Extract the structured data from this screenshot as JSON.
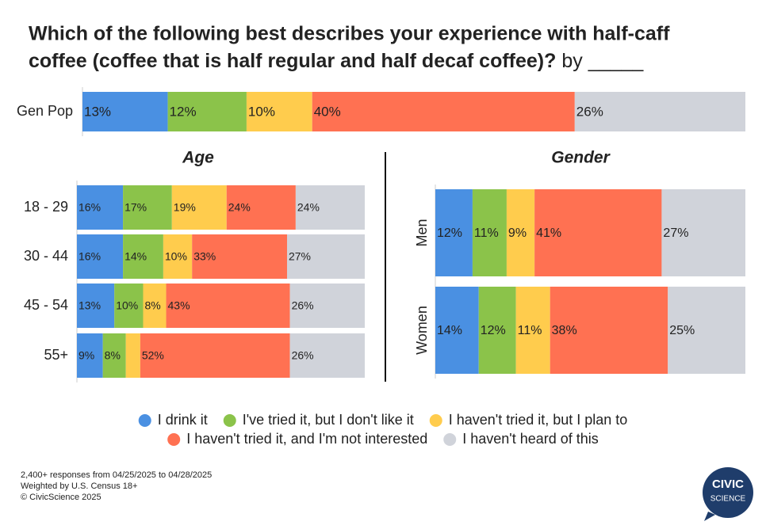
{
  "chart_data": [
    {
      "type": "bar",
      "stacked": true,
      "orientation": "horizontal",
      "title": "Which of the following best describes your experience with half-caff coffee (coffee that is half regular and half decaf coffee)?",
      "title_suffix": "by _____",
      "categories": [
        "Gen Pop"
      ],
      "series": [
        {
          "name": "I drink it",
          "color": "#4a90e2",
          "values": [
            13
          ],
          "value_labels": [
            "13%"
          ]
        },
        {
          "name": "I've tried it, but I don't like it",
          "color": "#8bc34a",
          "values": [
            12
          ],
          "value_labels": [
            "12%"
          ]
        },
        {
          "name": "I haven't tried it, but I plan to",
          "color": "#ffcc4d",
          "values": [
            10
          ],
          "value_labels": [
            "10%"
          ]
        },
        {
          "name": "I haven't tried it, and I'm not interested",
          "color": "#ff7152",
          "values": [
            40
          ],
          "value_labels": [
            "40%"
          ]
        },
        {
          "name": "I haven't heard of this",
          "color": "#d0d3da",
          "values": [
            26
          ],
          "value_labels": [
            "26%"
          ]
        }
      ]
    },
    {
      "type": "bar",
      "stacked": true,
      "orientation": "horizontal",
      "title": "Age",
      "categories": [
        "18 - 29",
        "30 - 44",
        "45 - 54",
        "55+"
      ],
      "series": [
        {
          "color": "#4a90e2",
          "values": [
            16,
            16,
            13,
            9
          ],
          "value_labels": [
            "16%",
            "16%",
            "13%",
            "9%"
          ]
        },
        {
          "color": "#8bc34a",
          "values": [
            17,
            14,
            10,
            8
          ],
          "value_labels": [
            "17%",
            "14%",
            "10%",
            "8%"
          ]
        },
        {
          "color": "#ffcc4d",
          "values": [
            19,
            10,
            8,
            5
          ],
          "value_labels": [
            "19%",
            "10%",
            "8%",
            null
          ]
        },
        {
          "color": "#ff7152",
          "values": [
            24,
            33,
            43,
            52
          ],
          "value_labels": [
            "24%",
            "33%",
            "43%",
            "52%"
          ]
        },
        {
          "color": "#d0d3da",
          "values": [
            24,
            27,
            26,
            26
          ],
          "value_labels": [
            "24%",
            "27%",
            "26%",
            "26%"
          ]
        }
      ]
    },
    {
      "type": "bar",
      "stacked": true,
      "orientation": "horizontal",
      "title": "Gender",
      "categories": [
        "Men",
        "Women"
      ],
      "series": [
        {
          "color": "#4a90e2",
          "values": [
            12,
            14
          ],
          "value_labels": [
            "12%",
            "14%"
          ]
        },
        {
          "color": "#8bc34a",
          "values": [
            11,
            12
          ],
          "value_labels": [
            "11%",
            "12%"
          ]
        },
        {
          "color": "#ffcc4d",
          "values": [
            9,
            11
          ],
          "value_labels": [
            "9%",
            "11%"
          ]
        },
        {
          "color": "#ff7152",
          "values": [
            41,
            38
          ],
          "value_labels": [
            "41%",
            "38%"
          ]
        },
        {
          "color": "#d0d3da",
          "values": [
            27,
            25
          ],
          "value_labels": [
            "27%",
            "25%"
          ]
        }
      ]
    }
  ],
  "notes": [
    "2,400+ responses from 04/25/2025 to 04/28/2025",
    "Weighted by U.S. Census 18+",
    "© CivicScience 2025"
  ],
  "logo": [
    "CIVIC",
    "SCIENCE"
  ]
}
